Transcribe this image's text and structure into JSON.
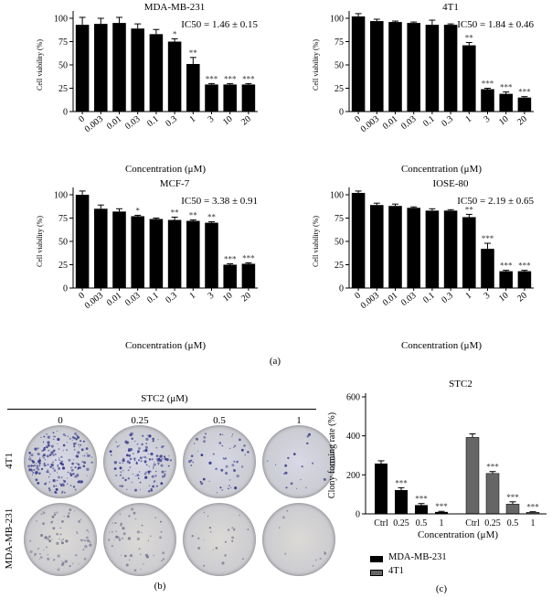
{
  "panel_labels": {
    "a": "(a)",
    "b": "(b)",
    "c": "(c)"
  },
  "colony": {
    "compound": "STC2 (μM)",
    "concentrations": [
      "0",
      "0.25",
      "0.5",
      "1"
    ],
    "rows": [
      "4T1",
      "MDA-MB-231"
    ],
    "row_colors": [
      "#d8d8e6",
      "#dcdad6"
    ],
    "density": [
      [
        0.95,
        0.65,
        0.25,
        0.08
      ],
      [
        0.35,
        0.22,
        0.1,
        0.04
      ]
    ]
  },
  "chart_data": [
    {
      "type": "bar",
      "title": "MDA-MB-231",
      "annotation": "IC50 = 1.46 ± 0.15",
      "categories": [
        "0",
        "0.003",
        "0.01",
        "0.03",
        "0.1",
        "0.3",
        "1",
        "3",
        "10",
        "20"
      ],
      "values": [
        93,
        94,
        95,
        89,
        83,
        75,
        51,
        29,
        29,
        29
      ],
      "errors": [
        8,
        6,
        6,
        5,
        5,
        3,
        7,
        1,
        1,
        1
      ],
      "significance": [
        "",
        "",
        "",
        "",
        "",
        "*",
        "**",
        "***",
        "***",
        "***"
      ],
      "ylabel": "Cell viability (%)",
      "xlabel": "Concentration (μM)",
      "ylim": [
        0,
        100
      ],
      "yticks": [
        0,
        25,
        50,
        75,
        100
      ]
    },
    {
      "type": "bar",
      "title": "4T1",
      "annotation": "IC50 = 1.84 ± 0.46",
      "categories": [
        "0",
        "0.003",
        "0.01",
        "0.03",
        "0.1",
        "0.3",
        "1",
        "3",
        "10",
        "20"
      ],
      "values": [
        102,
        97,
        96,
        95,
        93,
        93,
        71,
        24,
        19,
        15
      ],
      "errors": [
        3,
        2,
        1,
        1,
        5,
        1,
        3,
        1,
        2,
        1
      ],
      "significance": [
        "",
        "",
        "",
        "",
        "",
        "",
        "**",
        "***",
        "***",
        "***"
      ],
      "ylabel": "Cell viability (%)",
      "xlabel": "Concentration (μM)",
      "ylim": [
        0,
        100
      ],
      "yticks": [
        0,
        25,
        50,
        75,
        100
      ]
    },
    {
      "type": "bar",
      "title": "MCF-7",
      "annotation": "IC50 = 3.38 ± 0.91",
      "categories": [
        "0",
        "0.003",
        "0.01",
        "0.03",
        "0.1",
        "0.3",
        "1",
        "3",
        "10",
        "20"
      ],
      "values": [
        100,
        85,
        82,
        77,
        74,
        73,
        72,
        70,
        25,
        26
      ],
      "errors": [
        4,
        4,
        3,
        1,
        1,
        3,
        1,
        1,
        1,
        1
      ],
      "significance": [
        "",
        "",
        "",
        "*",
        "",
        "**",
        "**",
        "**",
        "***",
        "***"
      ],
      "ylabel": "Cell viability (%)",
      "xlabel": "Concentration (μM)",
      "ylim": [
        0,
        100
      ],
      "yticks": [
        0,
        25,
        50,
        75,
        100
      ]
    },
    {
      "type": "bar",
      "title": "IOSE-80",
      "annotation": "IC50 = 2.19 ± 0.65",
      "categories": [
        "0",
        "0.003",
        "0.01",
        "0.03",
        "0.1",
        "0.3",
        "1",
        "3",
        "10",
        "20"
      ],
      "values": [
        102,
        89,
        88,
        86,
        83,
        83,
        76,
        42,
        18,
        18
      ],
      "errors": [
        2,
        2,
        2,
        1,
        2,
        1,
        3,
        6,
        1,
        1
      ],
      "significance": [
        "",
        "",
        "",
        "",
        "",
        "",
        "**",
        "***",
        "***",
        "***"
      ],
      "ylabel": "Cell viability (%)",
      "xlabel": "Concentration (μM)",
      "ylim": [
        0,
        100
      ],
      "yticks": [
        0,
        25,
        50,
        75,
        100
      ]
    },
    {
      "type": "bar",
      "title": "STC2",
      "categories": [
        "Ctrl",
        "0.25",
        "0.5",
        "1"
      ],
      "series": [
        {
          "name": "MDA-MB-231",
          "color": "#000000",
          "values": [
            258,
            122,
            45,
            10
          ],
          "errors": [
            14,
            12,
            8,
            3
          ],
          "significance": [
            "",
            "***",
            "***",
            "***"
          ]
        },
        {
          "name": "4T1",
          "color": "#666666",
          "values": [
            392,
            207,
            50,
            8
          ],
          "errors": [
            18,
            10,
            12,
            3
          ],
          "significance": [
            "",
            "***",
            "***",
            "***"
          ]
        }
      ],
      "ylabel": "Clony forming rate (%)",
      "xlabel": "Concentration (μM)",
      "ylim": [
        0,
        600
      ],
      "yticks": [
        0,
        200,
        400,
        600
      ],
      "legend_position": "bottom"
    }
  ]
}
